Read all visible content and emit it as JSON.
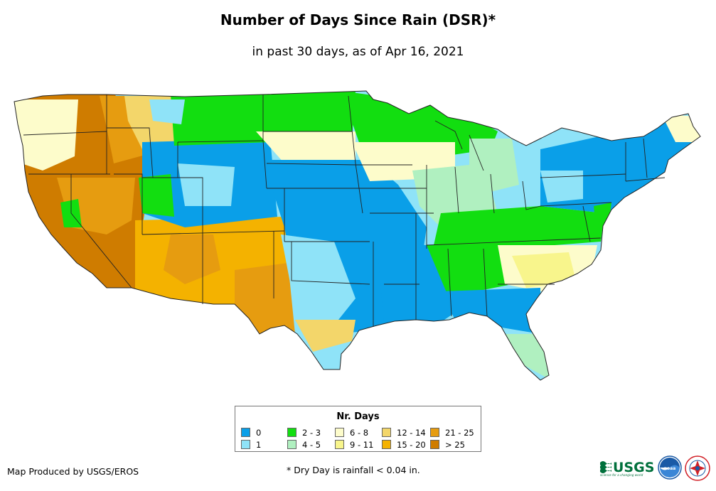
{
  "header": {
    "title": "Number of Days Since Rain (DSR)*",
    "subtitle": "in past 30 days, as of Apr 16, 2021"
  },
  "legend": {
    "title": "Nr. Days",
    "classes": [
      {
        "label": "0",
        "color": "#0a9fe8"
      },
      {
        "label": "1",
        "color": "#8fe3f8"
      },
      {
        "label": "2 - 3",
        "color": "#12de10"
      },
      {
        "label": "4 - 5",
        "color": "#b0f0c0"
      },
      {
        "label": "6 - 8",
        "color": "#fdfccb"
      },
      {
        "label": "9 - 11",
        "color": "#f8f58c"
      },
      {
        "label": "12 - 14",
        "color": "#f3d66a"
      },
      {
        "label": "15 - 20",
        "color": "#f4b200"
      },
      {
        "label": "21 - 25",
        "color": "#e69c10"
      },
      {
        "label": "> 25",
        "color": "#cf7c00"
      }
    ]
  },
  "footer": {
    "credit": "Map Produced by USGS/EROS",
    "footnote": "* Dry Day is rainfall < 0.04 in."
  },
  "logos": {
    "usgs_text": "USGS",
    "usgs_tagline": "science for a changing world",
    "noaa_text": "noaa"
  },
  "colors": {
    "state_border": "#222222",
    "usgs_green": "#00703c",
    "noaa_blue": "#1a5aa6",
    "nws_red": "#d11f26"
  }
}
